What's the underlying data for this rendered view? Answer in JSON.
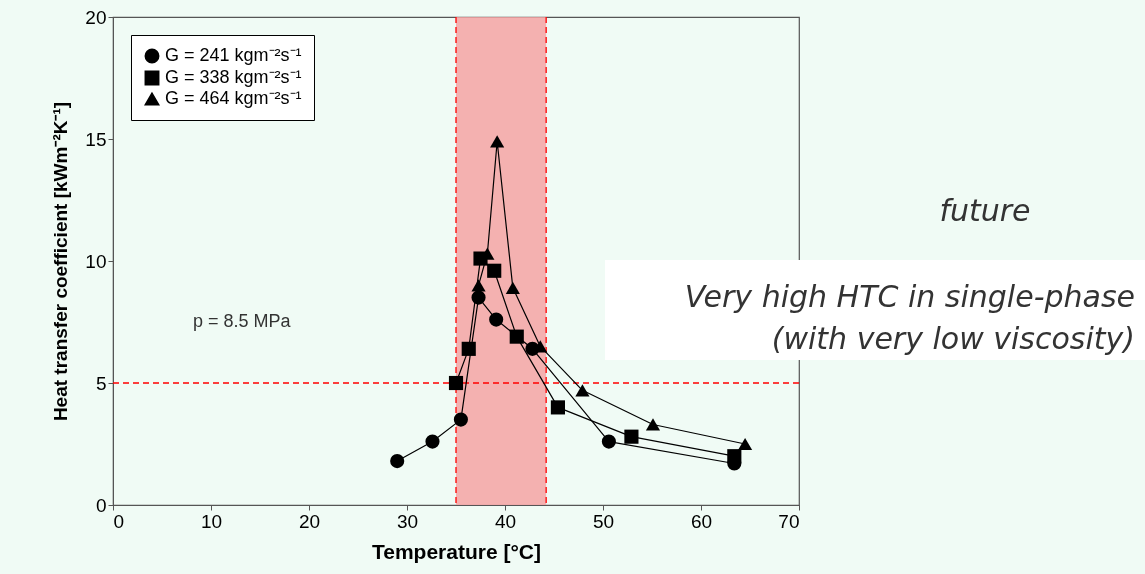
{
  "chart_data": {
    "type": "line",
    "xlabel": "Temperature [°C]",
    "ylabel": "Heat transfer coefficient [kWm⁻²K⁻¹]",
    "xlim": [
      0,
      70
    ],
    "xticks": [
      0,
      10,
      20,
      30,
      40,
      50,
      60,
      70
    ],
    "ylim": [
      0,
      20
    ],
    "yticks": [
      0,
      5,
      10,
      15,
      20
    ],
    "grid": false,
    "legend": "top left",
    "line_style": "solid",
    "series": [
      {
        "name": "G = 241 kgm⁻²s⁻¹",
        "color": "#000000",
        "marker": "circle",
        "x": [
          29.0,
          32.6,
          35.5,
          37.3,
          39.1,
          42.8,
          50.6,
          63.4
        ],
        "values": [
          1.8,
          2.6,
          3.5,
          8.5,
          7.6,
          6.4,
          2.6,
          1.7
        ]
      },
      {
        "name": "G = 338 kgm⁻²s⁻¹",
        "color": "#000000",
        "marker": "square",
        "x": [
          35.0,
          36.3,
          37.5,
          38.9,
          41.2,
          45.4,
          52.9,
          63.4
        ],
        "values": [
          5.0,
          6.4,
          10.1,
          9.6,
          6.9,
          4.0,
          2.8,
          2.0
        ]
      },
      {
        "name": "G = 464 kgm⁻²s⁻¹",
        "color": "#000000",
        "marker": "triangle",
        "x": [
          37.3,
          38.2,
          39.2,
          40.8,
          43.6,
          47.9,
          55.1,
          64.5
        ],
        "values": [
          9.0,
          10.3,
          14.9,
          8.9,
          6.5,
          4.7,
          3.3,
          2.5
        ]
      }
    ],
    "bands": [
      {
        "axis": "x",
        "from": 35,
        "to": 44.2,
        "color": "#f4a3a3"
      }
    ],
    "ref_lines": [
      {
        "axis": "y",
        "value": 5,
        "color": "#ff0000",
        "line_style": "dashed"
      },
      {
        "axis": "x",
        "value": 35,
        "color": "#ff0000",
        "line_style": "dashed"
      },
      {
        "axis": "x",
        "value": 44.2,
        "color": "#ff0000",
        "line_style": "dashed"
      }
    ],
    "annotations": [
      "p = 8.5 MPa",
      "future",
      "Very high HTC in single-phase\n(with very low viscosity)"
    ]
  }
}
